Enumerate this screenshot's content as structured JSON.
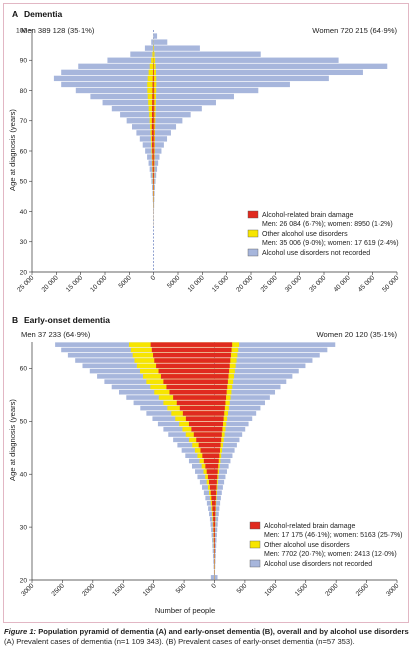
{
  "caption": {
    "figure_label": "Figure 1:",
    "title": "Population pyramid of dementia (A) and early-onset dementia (B), overall and by alcohol use disorders",
    "text": "(A) Prevalent cases of dementia (n=1 109 343). (B) Prevalent cases of early-onset dementia (n=57 353)."
  },
  "colors": {
    "arbd": "#e02a1f",
    "other_aud": "#f7e500",
    "not_recorded": "#a7b6dc",
    "frame": "#e2b7c4"
  },
  "chart_data": [
    {
      "type": "bar",
      "orientation": "population-pyramid",
      "panel_label": "A",
      "title": "Dementia",
      "left_label": "Men 389 128 (35·1%)",
      "right_label": "Women 720 215 (64·9%)",
      "ylabel": "Age at diagnosis (years)",
      "xlabel": "",
      "y_ticks": [
        20,
        30,
        40,
        50,
        60,
        70,
        80,
        90,
        100
      ],
      "ylim": [
        20,
        100
      ],
      "x_ticks_left": [
        "25 000",
        "20 000",
        "15 000",
        "10 000",
        "5000",
        "0"
      ],
      "x_ticks_right": [
        "5000",
        "10 000",
        "15 000",
        "20 000",
        "25 000",
        "30 000",
        "35 000",
        "40 000",
        "45 000",
        "50 000"
      ],
      "xlim_left": 25000,
      "xlim_right": 50000,
      "legend_position": "bottom-right",
      "legend": [
        {
          "key": "arbd",
          "label": "Alcohol-related brain damage",
          "detail": "Men: 26 084 (6·7%); women: 8950 (1·2%)"
        },
        {
          "key": "other_aud",
          "label": "Other alcohol use disorders",
          "detail": "Men: 35 006 (9·0%); women: 17 619 (2·4%)"
        },
        {
          "key": "not_recorded",
          "label": "Alcohol use disorders not recorded",
          "detail": ""
        }
      ],
      "age_bands": [
        [
          35,
          37
        ],
        [
          37,
          39
        ],
        [
          39,
          41
        ],
        [
          41,
          43
        ],
        [
          43,
          45
        ],
        [
          45,
          47
        ],
        [
          47,
          49
        ],
        [
          49,
          51
        ],
        [
          51,
          53
        ],
        [
          53,
          55
        ],
        [
          55,
          57
        ],
        [
          57,
          59
        ],
        [
          59,
          61
        ],
        [
          61,
          63
        ],
        [
          63,
          65
        ],
        [
          65,
          67
        ],
        [
          67,
          69
        ],
        [
          69,
          71
        ],
        [
          71,
          73
        ],
        [
          73,
          75
        ],
        [
          75,
          77
        ],
        [
          77,
          79
        ],
        [
          79,
          81
        ],
        [
          81,
          83
        ],
        [
          83,
          85
        ],
        [
          85,
          87
        ],
        [
          87,
          89
        ],
        [
          89,
          91
        ],
        [
          91,
          93
        ],
        [
          93,
          95
        ],
        [
          95,
          97
        ],
        [
          97,
          99
        ]
      ],
      "series": {
        "men": {
          "arbd": [
            10,
            15,
            25,
            35,
            50,
            70,
            90,
            120,
            150,
            190,
            230,
            260,
            300,
            330,
            350,
            380,
            380,
            360,
            340,
            330,
            300,
            270,
            250,
            220,
            180,
            140,
            100,
            60,
            30,
            15,
            5,
            2
          ],
          "other_aud": [
            5,
            8,
            12,
            18,
            25,
            35,
            45,
            60,
            75,
            90,
            110,
            130,
            150,
            180,
            220,
            280,
            360,
            460,
            580,
            700,
            820,
            950,
            1050,
            1100,
            1050,
            900,
            700,
            450,
            220,
            80,
            25,
            8
          ],
          "total": [
            40,
            60,
            90,
            130,
            180,
            250,
            340,
            460,
            620,
            820,
            1050,
            1350,
            1750,
            2250,
            2850,
            3550,
            4450,
            5550,
            6900,
            8600,
            10500,
            13000,
            16000,
            19000,
            20500,
            19000,
            15500,
            9500,
            4800,
            1800,
            500,
            120
          ]
        },
        "women": {
          "arbd": [
            5,
            8,
            12,
            18,
            25,
            35,
            45,
            60,
            70,
            85,
            100,
            110,
            120,
            125,
            125,
            130,
            130,
            130,
            130,
            130,
            120,
            110,
            100,
            90,
            75,
            55,
            35,
            20,
            10,
            4,
            1,
            0
          ],
          "other_aud": [
            4,
            6,
            8,
            12,
            16,
            22,
            30,
            40,
            50,
            60,
            70,
            85,
            100,
            115,
            130,
            150,
            180,
            210,
            250,
            290,
            330,
            370,
            420,
            450,
            460,
            430,
            370,
            280,
            160,
            70,
            20,
            5
          ],
          "total": [
            30,
            45,
            70,
            100,
            140,
            200,
            280,
            380,
            520,
            700,
            920,
            1200,
            1600,
            2100,
            2750,
            3550,
            4600,
            5900,
            7600,
            9900,
            12800,
            16500,
            21500,
            28000,
            36000,
            43000,
            48000,
            38000,
            22000,
            9500,
            2800,
            700
          ]
        }
      }
    },
    {
      "type": "bar",
      "orientation": "population-pyramid",
      "panel_label": "B",
      "title": "Early-onset dementia",
      "left_label": "Men 37 233 (64·9%)",
      "right_label": "Women 20 120 (35·1%)",
      "ylabel": "Age at diagnosis (years)",
      "xlabel": "Number of people",
      "y_ticks": [
        20,
        30,
        40,
        50,
        60
      ],
      "ylim": [
        20,
        65
      ],
      "x_ticks_left": [
        "3000",
        "2500",
        "2000",
        "1500",
        "1000",
        "500",
        "0"
      ],
      "x_ticks_right": [
        "500",
        "1000",
        "1500",
        "2000",
        "2500",
        "3000"
      ],
      "xlim_left": 3000,
      "xlim_right": 3000,
      "legend_position": "bottom-right",
      "legend": [
        {
          "key": "arbd",
          "label": "Alcohol-related brain damage",
          "detail": "Men: 17 175 (46·1%); women: 5163 (25·7%)"
        },
        {
          "key": "other_aud",
          "label": "Other alcohol use disorders",
          "detail": "Men: 7702 (20·7%); women: 2413 (12·0%)"
        },
        {
          "key": "not_recorded",
          "label": "Alcohol use disorders not recorded",
          "detail": ""
        }
      ],
      "ages": [
        20,
        21,
        22,
        23,
        24,
        25,
        26,
        27,
        28,
        29,
        30,
        31,
        32,
        33,
        34,
        35,
        36,
        37,
        38,
        39,
        40,
        41,
        42,
        43,
        44,
        45,
        46,
        47,
        48,
        49,
        50,
        51,
        52,
        53,
        54,
        55,
        56,
        57,
        58,
        59,
        60,
        61,
        62,
        63,
        64
      ],
      "series": {
        "men": {
          "arbd": [
            2,
            3,
            3,
            4,
            5,
            6,
            8,
            10,
            12,
            15,
            18,
            22,
            28,
            35,
            42,
            52,
            62,
            75,
            90,
            108,
            128,
            150,
            175,
            200,
            230,
            260,
            300,
            340,
            380,
            420,
            470,
            520,
            570,
            620,
            680,
            740,
            790,
            840,
            880,
            920,
            960,
            990,
            1010,
            1030,
            1050
          ],
          "other_aud": [
            1,
            1,
            2,
            2,
            2,
            3,
            4,
            5,
            6,
            7,
            9,
            11,
            13,
            16,
            19,
            23,
            27,
            32,
            38,
            45,
            52,
            60,
            70,
            80,
            92,
            105,
            118,
            132,
            146,
            160,
            175,
            190,
            205,
            220,
            235,
            250,
            265,
            280,
            295,
            305,
            315,
            325,
            335,
            345,
            355
          ],
          "total": [
            60,
            10,
            15,
            20,
            25,
            30,
            35,
            40,
            48,
            55,
            65,
            75,
            90,
            105,
            125,
            150,
            175,
            205,
            240,
            280,
            320,
            370,
            420,
            480,
            540,
            610,
            680,
            760,
            840,
            930,
            1020,
            1120,
            1220,
            1330,
            1450,
            1570,
            1690,
            1810,
            1930,
            2050,
            2170,
            2290,
            2410,
            2520,
            2620
          ]
        },
        "women": {
          "arbd": [
            1,
            1,
            2,
            2,
            2,
            3,
            4,
            5,
            6,
            7,
            9,
            11,
            13,
            16,
            19,
            23,
            28,
            33,
            39,
            46,
            53,
            61,
            70,
            80,
            90,
            100,
            110,
            120,
            130,
            140,
            150,
            160,
            170,
            180,
            190,
            200,
            210,
            220,
            230,
            240,
            250,
            260,
            270,
            280,
            290
          ],
          "other_aud": [
            1,
            1,
            1,
            1,
            1,
            1,
            2,
            2,
            3,
            3,
            4,
            5,
            6,
            7,
            8,
            10,
            12,
            14,
            16,
            18,
            21,
            24,
            27,
            30,
            34,
            38,
            42,
            46,
            50,
            54,
            58,
            62,
            66,
            70,
            74,
            78,
            82,
            86,
            90,
            94,
            98,
            102,
            106,
            110,
            114
          ],
          "total": [
            50,
            8,
            12,
            16,
            20,
            24,
            28,
            33,
            39,
            45,
            52,
            60,
            70,
            80,
            92,
            105,
            120,
            138,
            158,
            180,
            205,
            232,
            262,
            295,
            330,
            368,
            410,
            455,
            505,
            560,
            620,
            685,
            755,
            830,
            910,
            995,
            1085,
            1180,
            1280,
            1385,
            1495,
            1610,
            1730,
            1855,
            1985
          ]
        }
      }
    }
  ]
}
